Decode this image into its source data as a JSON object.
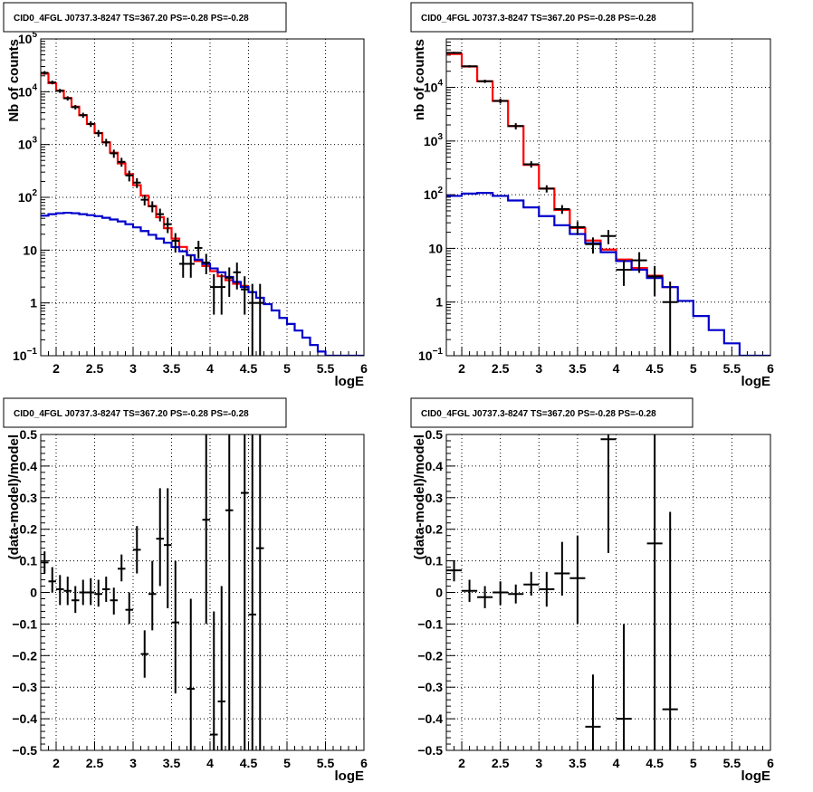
{
  "chart_data": [
    {
      "type": "histogram",
      "title": "CID0_4FGL J0737.3-8247 TS=367.20 PS=-0.28 PS=-0.28",
      "xlabel": "logE",
      "ylabel": "Nb of counts",
      "xlim": [
        1.8,
        6.0
      ],
      "ylim": [
        0.1,
        100000
      ],
      "yscale": "log",
      "xticks": [
        "2",
        "2.5",
        "3",
        "3.5",
        "4",
        "4.5",
        "5",
        "5.5",
        "6"
      ],
      "yticks": [
        {
          "v": 0.1,
          "base": "10",
          "exp": "−1"
        },
        {
          "v": 1,
          "label": "1"
        },
        {
          "v": 10,
          "label": "10"
        },
        {
          "v": 100,
          "base": "10",
          "exp": "2"
        },
        {
          "v": 1000,
          "base": "10",
          "exp": "3"
        },
        {
          "v": 10000,
          "base": "10",
          "exp": "4"
        },
        {
          "v": 100000,
          "base": "10",
          "exp": "5"
        }
      ],
      "grid": true,
      "bin_edges": [
        1.8,
        1.9,
        2.0,
        2.1,
        2.2,
        2.3,
        2.4,
        2.5,
        2.6,
        2.7,
        2.8,
        2.9,
        3.0,
        3.1,
        3.2,
        3.3,
        3.4,
        3.5,
        3.6,
        3.7,
        3.8,
        3.9,
        4.0,
        4.1,
        4.2,
        4.3,
        4.4,
        4.5,
        4.6,
        4.7,
        4.8,
        4.9,
        5.0,
        5.1,
        5.2,
        5.3,
        5.4,
        5.5,
        5.6,
        5.7,
        5.8,
        5.9,
        6.0
      ],
      "series": [
        {
          "color": "#ff0000",
          "kind": "step",
          "values": [
            22000,
            14500,
            10500,
            7600,
            5200,
            3600,
            2450,
            1650,
            1100,
            700,
            440,
            275,
            170,
            108,
            68,
            42,
            26,
            16.5,
            11.5,
            8,
            6.2,
            5,
            4,
            3.2,
            2.7,
            2.3,
            2.1
          ]
        },
        {
          "color": "#0000cc",
          "kind": "step",
          "values": [
            45,
            48,
            50,
            51,
            50,
            48,
            46,
            44,
            41,
            38,
            35,
            31,
            27,
            23,
            19.5,
            16.5,
            13.8,
            11.4,
            9.5,
            8,
            6.6,
            5.5,
            4.5,
            3.8,
            3.1,
            2.5,
            2.0,
            1.6,
            1.25,
            0.95,
            0.72,
            0.52,
            0.4,
            0.3,
            0.22,
            0.16,
            0.12,
            0.1,
            0.1,
            0.1,
            0.1,
            0.1
          ]
        },
        {
          "color": "#000000",
          "kind": "points",
          "points": [
            {
              "x": 1.85,
              "y": 22800,
              "lo": 21000,
              "hi": 24600
            },
            {
              "x": 1.95,
              "y": 15000,
              "lo": 13800,
              "hi": 16200
            },
            {
              "x": 2.05,
              "y": 10400,
              "lo": 9500,
              "hi": 11300
            },
            {
              "x": 2.15,
              "y": 7500,
              "lo": 6800,
              "hi": 8200
            },
            {
              "x": 2.25,
              "y": 5100,
              "lo": 4600,
              "hi": 5600
            },
            {
              "x": 2.35,
              "y": 3600,
              "lo": 3200,
              "hi": 4000
            },
            {
              "x": 2.45,
              "y": 2450,
              "lo": 2150,
              "hi": 2750
            },
            {
              "x": 2.55,
              "y": 1640,
              "lo": 1400,
              "hi": 1880
            },
            {
              "x": 2.65,
              "y": 1100,
              "lo": 920,
              "hi": 1280
            },
            {
              "x": 2.75,
              "y": 680,
              "lo": 560,
              "hi": 800
            },
            {
              "x": 2.85,
              "y": 470,
              "lo": 380,
              "hi": 560
            },
            {
              "x": 2.95,
              "y": 260,
              "lo": 200,
              "hi": 320
            },
            {
              "x": 3.05,
              "y": 190,
              "lo": 150,
              "hi": 230
            },
            {
              "x": 3.15,
              "y": 90,
              "lo": 70,
              "hi": 110
            },
            {
              "x": 3.25,
              "y": 68,
              "lo": 52,
              "hi": 84
            },
            {
              "x": 3.35,
              "y": 48,
              "lo": 35,
              "hi": 61
            },
            {
              "x": 3.45,
              "y": 31,
              "lo": 21,
              "hi": 41
            },
            {
              "x": 3.55,
              "y": 15,
              "lo": 9,
              "hi": 21
            },
            {
              "x": 3.65,
              "y": 5.5,
              "lo": 3,
              "hi": 8
            },
            {
              "x": 3.75,
              "y": 5.5,
              "lo": 3,
              "hi": 8
            },
            {
              "x": 3.85,
              "y": 11,
              "lo": 7,
              "hi": 15
            },
            {
              "x": 3.95,
              "y": 5.8,
              "lo": 3.5,
              "hi": 8.5
            },
            {
              "x": 4.05,
              "y": 2,
              "lo": 0.6,
              "hi": 3.5
            },
            {
              "x": 4.15,
              "y": 2,
              "lo": 0.6,
              "hi": 3.5
            },
            {
              "x": 4.25,
              "y": 3,
              "lo": 1.3,
              "hi": 4.7
            },
            {
              "x": 4.35,
              "y": 3.8,
              "lo": 1.8,
              "hi": 5.8
            },
            {
              "x": 4.45,
              "y": 1.8,
              "lo": 0.6,
              "hi": 3.2
            },
            {
              "x": 4.55,
              "y": 1,
              "lo": 0.1,
              "hi": 2.3
            },
            {
              "x": 4.65,
              "y": 1,
              "lo": 0.1,
              "hi": 2.3
            }
          ]
        }
      ]
    },
    {
      "type": "histogram",
      "title": "CID0_4FGL J0737.3-8247 TS=367.20 PS=-0.28 PS=-0.28",
      "xlabel": "logE",
      "ylabel": "nb of counts",
      "xlim": [
        1.8,
        6.0
      ],
      "ylim": [
        0.1,
        80000
      ],
      "yscale": "log",
      "xticks": [
        "2",
        "2.5",
        "3",
        "3.5",
        "4",
        "4.5",
        "5",
        "5.5",
        "6"
      ],
      "yticks": [
        {
          "v": 0.1,
          "base": "10",
          "exp": "−1"
        },
        {
          "v": 1,
          "label": "1"
        },
        {
          "v": 10,
          "label": "10"
        },
        {
          "v": 100,
          "base": "10",
          "exp": "2"
        },
        {
          "v": 1000,
          "base": "10",
          "exp": "3"
        },
        {
          "v": 10000,
          "base": "10",
          "exp": "4"
        }
      ],
      "grid": true,
      "bin_edges": [
        1.8,
        2.0,
        2.2,
        2.4,
        2.6,
        2.8,
        3.0,
        3.2,
        3.4,
        3.6,
        3.8,
        4.0,
        4.2,
        4.4,
        4.6,
        4.8,
        5.0,
        5.2,
        5.4,
        5.6,
        5.8,
        6.0
      ],
      "series": [
        {
          "color": "#ff0000",
          "kind": "step",
          "values": [
            42000,
            24500,
            13000,
            5600,
            1900,
            360,
            130,
            52,
            24,
            14,
            9.5,
            6.2,
            4.3,
            3.1,
            1.9
          ]
        },
        {
          "color": "#0000cc",
          "kind": "step",
          "values": [
            95,
            105,
            108,
            95,
            78,
            58,
            40,
            27,
            18.5,
            12.5,
            8.5,
            5.8,
            4,
            2.8,
            1.9,
            1.05,
            0.55,
            0.3,
            0.17,
            0.1,
            0.1
          ]
        },
        {
          "color": "#000000",
          "kind": "points",
          "points": [
            {
              "x": 1.9,
              "y": 44000,
              "lo": 42000,
              "hi": 46000
            },
            {
              "x": 2.1,
              "y": 24700,
              "lo": 23500,
              "hi": 25900
            },
            {
              "x": 2.3,
              "y": 13000,
              "lo": 12100,
              "hi": 13900
            },
            {
              "x": 2.5,
              "y": 5600,
              "lo": 5000,
              "hi": 6200
            },
            {
              "x": 2.7,
              "y": 1900,
              "lo": 1650,
              "hi": 2150
            },
            {
              "x": 2.9,
              "y": 370,
              "lo": 320,
              "hi": 420
            },
            {
              "x": 3.1,
              "y": 130,
              "lo": 110,
              "hi": 150
            },
            {
              "x": 3.3,
              "y": 54,
              "lo": 44,
              "hi": 64
            },
            {
              "x": 3.5,
              "y": 25,
              "lo": 18,
              "hi": 32
            },
            {
              "x": 3.7,
              "y": 12,
              "lo": 8,
              "hi": 16
            },
            {
              "x": 3.9,
              "y": 17,
              "lo": 12,
              "hi": 22
            },
            {
              "x": 4.1,
              "y": 4,
              "lo": 2,
              "hi": 6
            },
            {
              "x": 4.3,
              "y": 6,
              "lo": 3.5,
              "hi": 8.5
            },
            {
              "x": 4.5,
              "y": 3,
              "lo": 1.3,
              "hi": 4.7
            },
            {
              "x": 4.7,
              "y": 1,
              "lo": 0.1,
              "hi": 2.4
            }
          ]
        }
      ]
    },
    {
      "type": "scatter",
      "title": "CID0_4FGL J0737.3-8247 TS=367.20 PS=-0.28 PS=-0.28",
      "xlabel": "logE",
      "ylabel": "(data-model)/model",
      "xlim": [
        1.8,
        6.0
      ],
      "ylim": [
        -0.5,
        0.5
      ],
      "yscale": "linear",
      "xticks": [
        "2",
        "2.5",
        "3",
        "3.5",
        "4",
        "4.5",
        "5",
        "5.5",
        "6"
      ],
      "yticks": [
        {
          "v": -0.5,
          "label": "−0.5"
        },
        {
          "v": -0.4,
          "label": "−0.4"
        },
        {
          "v": -0.3,
          "label": "−0.3"
        },
        {
          "v": -0.2,
          "label": "−0.2"
        },
        {
          "v": -0.1,
          "label": "−0.1"
        },
        {
          "v": 0,
          "label": "0"
        },
        {
          "v": 0.1,
          "label": "0.1"
        },
        {
          "v": 0.2,
          "label": "0.2"
        },
        {
          "v": 0.3,
          "label": "0.3"
        },
        {
          "v": 0.4,
          "label": "0.4"
        },
        {
          "v": 0.5,
          "label": "0.5"
        }
      ],
      "grid": true,
      "binw": 0.1,
      "series": [
        {
          "color": "#000000",
          "kind": "points",
          "points": [
            {
              "x": 1.85,
              "y": 0.095,
              "lo": 0.06,
              "hi": 0.13
            },
            {
              "x": 1.95,
              "y": 0.035,
              "lo": 0.0,
              "hi": 0.08
            },
            {
              "x": 2.05,
              "y": 0.01,
              "lo": -0.04,
              "hi": 0.055
            },
            {
              "x": 2.15,
              "y": 0.005,
              "lo": -0.04,
              "hi": 0.05
            },
            {
              "x": 2.25,
              "y": -0.025,
              "lo": -0.065,
              "hi": 0.02
            },
            {
              "x": 2.35,
              "y": 0.0,
              "lo": -0.04,
              "hi": 0.04
            },
            {
              "x": 2.45,
              "y": 0.0,
              "lo": -0.04,
              "hi": 0.045
            },
            {
              "x": 2.55,
              "y": -0.005,
              "lo": -0.045,
              "hi": 0.04
            },
            {
              "x": 2.65,
              "y": 0.01,
              "lo": -0.03,
              "hi": 0.05
            },
            {
              "x": 2.75,
              "y": -0.025,
              "lo": -0.07,
              "hi": 0.015
            },
            {
              "x": 2.85,
              "y": 0.075,
              "lo": 0.035,
              "hi": 0.12
            },
            {
              "x": 2.95,
              "y": -0.055,
              "lo": -0.1,
              "hi": 0.0
            },
            {
              "x": 3.05,
              "y": 0.135,
              "lo": 0.06,
              "hi": 0.21
            },
            {
              "x": 3.15,
              "y": -0.195,
              "lo": -0.27,
              "hi": -0.12
            },
            {
              "x": 3.25,
              "y": -0.005,
              "lo": -0.12,
              "hi": 0.1
            },
            {
              "x": 3.35,
              "y": 0.17,
              "lo": 0.02,
              "hi": 0.33
            },
            {
              "x": 3.45,
              "y": 0.15,
              "lo": -0.05,
              "hi": 0.33
            },
            {
              "x": 3.55,
              "y": -0.095,
              "lo": -0.32,
              "hi": 0.1
            },
            {
              "x": 3.75,
              "y": -0.305,
              "lo": -0.5,
              "hi": -0.02
            },
            {
              "x": 3.95,
              "y": 0.23,
              "lo": -0.1,
              "hi": 0.5
            },
            {
              "x": 4.05,
              "y": -0.45,
              "lo": -0.5,
              "hi": -0.06
            },
            {
              "x": 4.15,
              "y": -0.345,
              "lo": -0.5,
              "hi": 0.02
            },
            {
              "x": 4.25,
              "y": 0.26,
              "lo": -0.5,
              "hi": 0.5
            },
            {
              "x": 4.45,
              "y": 0.315,
              "lo": -0.5,
              "hi": 0.5
            },
            {
              "x": 4.55,
              "y": -0.07,
              "lo": -0.5,
              "hi": 0.5
            },
            {
              "x": 4.65,
              "y": 0.14,
              "lo": -0.5,
              "hi": 0.5
            }
          ]
        }
      ]
    },
    {
      "type": "scatter",
      "title": "CID0_4FGL J0737.3-8247 TS=367.20 PS=-0.28 PS=-0.28",
      "xlabel": "logE",
      "ylabel": "(data-model)/model",
      "xlim": [
        1.8,
        6.0
      ],
      "ylim": [
        -0.5,
        0.5
      ],
      "yscale": "linear",
      "xticks": [
        "2",
        "2.5",
        "3",
        "3.5",
        "4",
        "4.5",
        "5",
        "5.5",
        "6"
      ],
      "yticks": [
        {
          "v": -0.5,
          "label": "−0.5"
        },
        {
          "v": -0.4,
          "label": "−0.4"
        },
        {
          "v": -0.3,
          "label": "−0.3"
        },
        {
          "v": -0.2,
          "label": "−0.2"
        },
        {
          "v": -0.1,
          "label": "−0.1"
        },
        {
          "v": 0,
          "label": "0"
        },
        {
          "v": 0.1,
          "label": "0.1"
        },
        {
          "v": 0.2,
          "label": "0.2"
        },
        {
          "v": 0.3,
          "label": "0.3"
        },
        {
          "v": 0.4,
          "label": "0.4"
        },
        {
          "v": 0.5,
          "label": "0.5"
        }
      ],
      "grid": true,
      "binw": 0.2,
      "series": [
        {
          "color": "#000000",
          "kind": "points",
          "points": [
            {
              "x": 1.9,
              "y": 0.07,
              "lo": 0.035,
              "hi": 0.1
            },
            {
              "x": 2.1,
              "y": 0.005,
              "lo": -0.03,
              "hi": 0.04
            },
            {
              "x": 2.3,
              "y": -0.015,
              "lo": -0.05,
              "hi": 0.02
            },
            {
              "x": 2.5,
              "y": 0.0,
              "lo": -0.04,
              "hi": 0.035
            },
            {
              "x": 2.7,
              "y": -0.005,
              "lo": -0.035,
              "hi": 0.025
            },
            {
              "x": 2.9,
              "y": 0.025,
              "lo": -0.01,
              "hi": 0.065
            },
            {
              "x": 3.1,
              "y": 0.01,
              "lo": -0.045,
              "hi": 0.065
            },
            {
              "x": 3.3,
              "y": 0.06,
              "lo": -0.01,
              "hi": 0.16
            },
            {
              "x": 3.5,
              "y": 0.045,
              "lo": -0.1,
              "hi": 0.18
            },
            {
              "x": 3.7,
              "y": -0.425,
              "lo": -0.5,
              "hi": -0.26
            },
            {
              "x": 3.9,
              "y": 0.485,
              "lo": 0.125,
              "hi": 0.5
            },
            {
              "x": 4.1,
              "y": -0.4,
              "lo": -0.5,
              "hi": -0.1
            },
            {
              "x": 4.5,
              "y": 0.155,
              "lo": -0.5,
              "hi": 0.5
            },
            {
              "x": 4.7,
              "y": -0.37,
              "lo": -0.5,
              "hi": 0.255
            }
          ]
        }
      ]
    }
  ]
}
